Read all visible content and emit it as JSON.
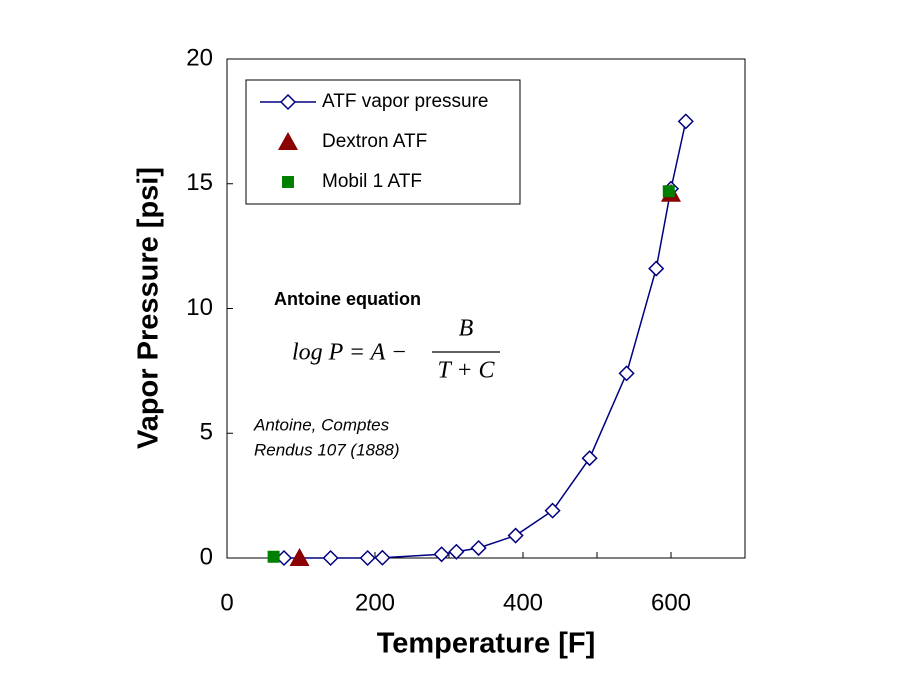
{
  "chart_data": {
    "type": "line",
    "xlabel": "Temperature [F]",
    "ylabel": "Vapor Pressure [psi]",
    "xlim": [
      0,
      700
    ],
    "xticks": [
      0,
      200,
      400,
      600
    ],
    "xminor": [
      100,
      300,
      500,
      700
    ],
    "ylim": [
      0,
      20
    ],
    "yticks": [
      0,
      5,
      10,
      15,
      20
    ],
    "grid": false,
    "legend": "upper left",
    "series": [
      {
        "name": "ATF vapor pressure",
        "color": "#000080",
        "marker": "diamond",
        "x": [
          77,
          140,
          190,
          210,
          290,
          310,
          340,
          390,
          440,
          490,
          540,
          580,
          600,
          620
        ],
        "values": [
          0,
          0,
          0,
          0.01,
          0.15,
          0.25,
          0.4,
          0.9,
          1.9,
          4.0,
          7.4,
          11.6,
          14.8,
          17.5
        ]
      },
      {
        "name": "Dextron ATF",
        "color": "#8b0000",
        "marker": "triangle",
        "x": [
          98,
          600
        ],
        "values": [
          0,
          14.6
        ]
      },
      {
        "name": "Mobil 1 ATF",
        "color": "#008000",
        "marker": "square",
        "x": [
          63,
          597
        ],
        "values": [
          0.05,
          14.7
        ]
      }
    ],
    "annotations": {
      "heading": "Antoine equation",
      "lhs": "log P = A −",
      "numerator": "B",
      "denominator": "T + C",
      "citation": [
        "Antoine, Comptes",
        "Rendus 107 (1888)"
      ]
    }
  }
}
